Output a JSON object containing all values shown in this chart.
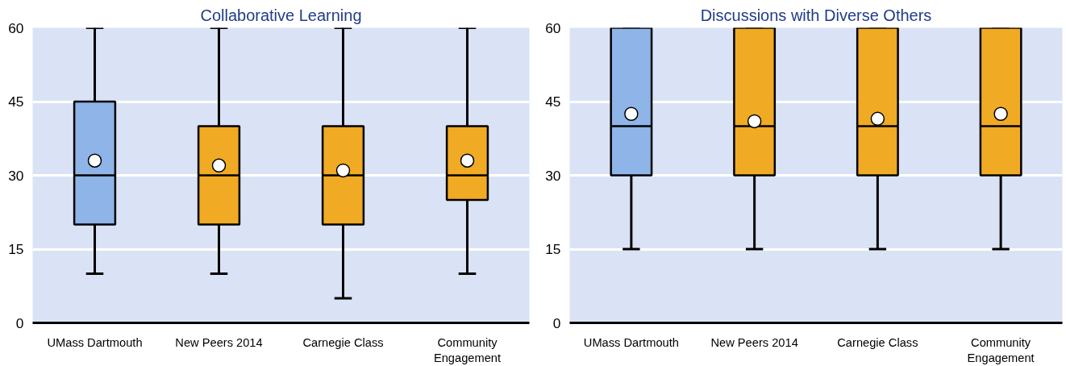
{
  "chart_data": [
    {
      "type": "box",
      "title": "Collaborative Learning",
      "categories": [
        "UMass Dartmouth",
        "New Peers 2014",
        "Carnegie Class",
        "Community Engagement"
      ],
      "colors": [
        "#8eb4e8",
        "#f0aa23",
        "#f0aa23",
        "#f0aa23"
      ],
      "boxes": [
        {
          "low": 10,
          "q1": 20,
          "median": 30,
          "q3": 45,
          "high": 60,
          "mean": 33
        },
        {
          "low": 10,
          "q1": 20,
          "median": 30,
          "q3": 40,
          "high": 60,
          "mean": 32
        },
        {
          "low": 5,
          "q1": 20,
          "median": 30,
          "q3": 40,
          "high": 60,
          "mean": 31
        },
        {
          "low": 10,
          "q1": 25,
          "median": 30,
          "q3": 40,
          "high": 60,
          "mean": 33
        }
      ],
      "ylim": [
        0,
        60
      ],
      "yticks": [
        0,
        15,
        30,
        45,
        60
      ],
      "grid": "y"
    },
    {
      "type": "box",
      "title": "Discussions with Diverse Others",
      "categories": [
        "UMass Dartmouth",
        "New Peers 2014",
        "Carnegie Class",
        "Community Engagement"
      ],
      "colors": [
        "#8eb4e8",
        "#f0aa23",
        "#f0aa23",
        "#f0aa23"
      ],
      "boxes": [
        {
          "low": 15,
          "q1": 30,
          "median": 40,
          "q3": 60,
          "high": 60,
          "mean": 42.5
        },
        {
          "low": 15,
          "q1": 30,
          "median": 40,
          "q3": 60,
          "high": 60,
          "mean": 41
        },
        {
          "low": 15,
          "q1": 30,
          "median": 40,
          "q3": 60,
          "high": 60,
          "mean": 41.5
        },
        {
          "low": 15,
          "q1": 30,
          "median": 40,
          "q3": 60,
          "high": 60,
          "mean": 42.5
        }
      ],
      "ylim": [
        0,
        60
      ],
      "yticks": [
        0,
        15,
        30,
        45,
        60
      ],
      "grid": "y"
    }
  ]
}
